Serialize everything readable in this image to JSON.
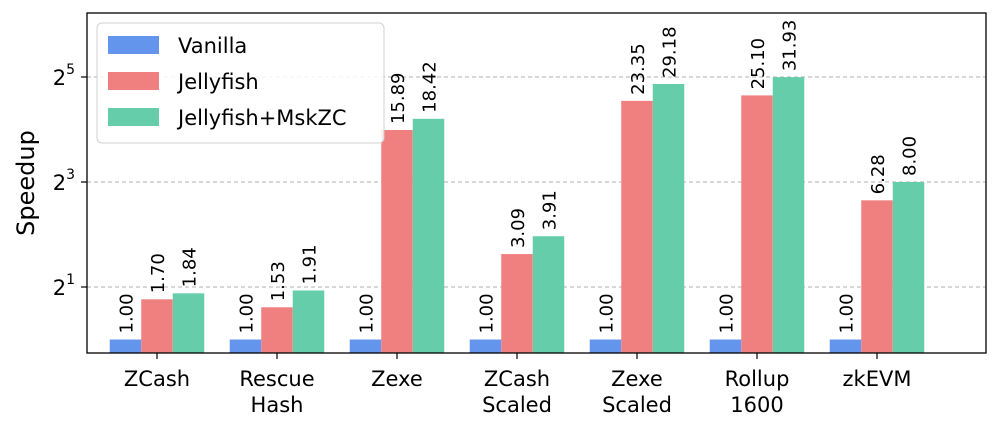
{
  "chart_data": {
    "type": "bar",
    "categories": [
      [
        "ZCash"
      ],
      [
        "Rescue",
        "Hash"
      ],
      [
        "Zexe"
      ],
      [
        "ZCash",
        "Scaled"
      ],
      [
        "Zexe",
        "Scaled"
      ],
      [
        "Rollup",
        "1600"
      ],
      [
        "zkEVM"
      ]
    ],
    "series": [
      {
        "name": "Vanilla",
        "color": "#6495ed",
        "values": [
          1.0,
          1.0,
          1.0,
          1.0,
          1.0,
          1.0,
          1.0
        ],
        "labels": [
          "1.00",
          "1.00",
          "1.00",
          "1.00",
          "1.00",
          "1.00",
          "1.00"
        ]
      },
      {
        "name": "Jellyfish",
        "color": "#f08080",
        "values": [
          1.7,
          1.53,
          15.89,
          3.09,
          23.35,
          25.1,
          6.28
        ],
        "labels": [
          "1.70",
          "1.53",
          "15.89",
          "3.09",
          "23.35",
          "25.10",
          "6.28"
        ]
      },
      {
        "name": "Jellyfish+MskZC",
        "color": "#66cdaa",
        "values": [
          1.84,
          1.91,
          18.42,
          3.91,
          29.18,
          31.93,
          8.0
        ],
        "labels": [
          "1.84",
          "1.91",
          "18.42",
          "3.91",
          "29.18",
          "31.93",
          "8.00"
        ]
      }
    ],
    "ylabel": "Speedup",
    "yscale": "log2",
    "yticks": [
      {
        "base": "2",
        "exp": "1",
        "value": 2
      },
      {
        "base": "2",
        "exp": "3",
        "value": 8
      },
      {
        "base": "2",
        "exp": "5",
        "value": 32
      }
    ],
    "legend_position": "top-left",
    "grid": "horizontal dashed"
  }
}
